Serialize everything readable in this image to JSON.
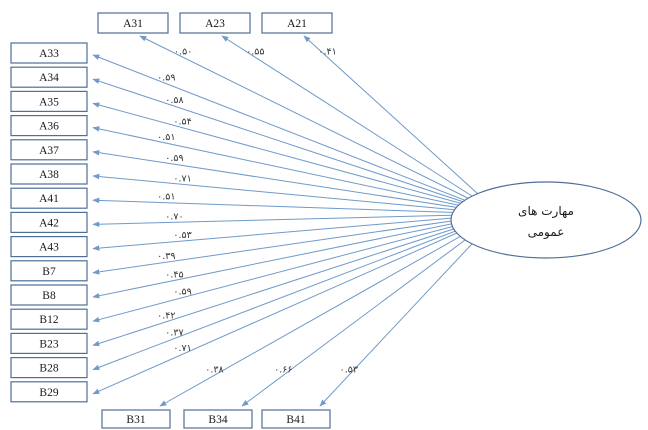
{
  "factor": {
    "line1": "مهارت های",
    "line2": "عمومی"
  },
  "top_indicators": [
    {
      "label": "A31",
      "coef": "۰.۵۰"
    },
    {
      "label": "A23",
      "coef": "۰.۵۵"
    },
    {
      "label": "A21",
      "coef": "۰.۴۱"
    }
  ],
  "left_indicators": [
    {
      "label": "A33",
      "coef": "۰.۵۹"
    },
    {
      "label": "A34",
      "coef": "۰.۵۸"
    },
    {
      "label": "A35",
      "coef": "۰.۵۴"
    },
    {
      "label": "A36",
      "coef": "۰.۵۱"
    },
    {
      "label": "A37",
      "coef": "۰.۵۹"
    },
    {
      "label": "A38",
      "coef": "۰.۷۱"
    },
    {
      "label": "A41",
      "coef": "۰.۵۱"
    },
    {
      "label": "A42",
      "coef": "۰.۷۰"
    },
    {
      "label": "A43",
      "coef": "۰.۵۳"
    },
    {
      "label": "B7",
      "coef": "۰.۳۹"
    },
    {
      "label": "B8",
      "coef": "۰.۴۵"
    },
    {
      "label": "B12",
      "coef": "۰.۵۹"
    },
    {
      "label": "B23",
      "coef": "۰.۴۲"
    },
    {
      "label": "B28",
      "coef": "۰.۳۷"
    },
    {
      "label": "B29",
      "coef": "۰.۷۱"
    }
  ],
  "bottom_indicators": [
    {
      "label": "B31",
      "coef": "۰.۳۸"
    },
    {
      "label": "B34",
      "coef": "۰.۶۶"
    },
    {
      "label": "B41",
      "coef": "۰.۵۳"
    }
  ]
}
